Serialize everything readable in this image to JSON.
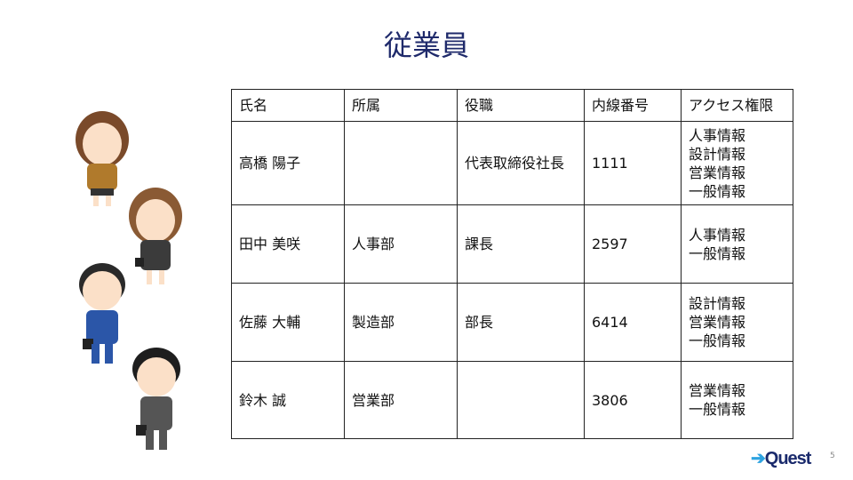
{
  "title": "従業員",
  "table": {
    "headers": [
      "氏名",
      "所属",
      "役職",
      "内線番号",
      "アクセス権限"
    ],
    "rows": [
      {
        "name": "高橋 陽子",
        "dept": "",
        "role": "代表取締役社長",
        "ext": "1111",
        "access": [
          "人事情報",
          "設計情報",
          "営業情報",
          "一般情報"
        ]
      },
      {
        "name": "田中 美咲",
        "dept": "人事部",
        "role": "課長",
        "ext": "2597",
        "access": [
          "人事情報",
          "一般情報"
        ]
      },
      {
        "name": "佐藤 大輔",
        "dept": "製造部",
        "role": "部長",
        "ext": "6414",
        "access": [
          "設計情報",
          "営業情報",
          "一般情報"
        ]
      },
      {
        "name": "鈴木 誠",
        "dept": "営業部",
        "role": "",
        "ext": "3806",
        "access": [
          "営業情報",
          "一般情報"
        ]
      }
    ]
  },
  "logo": "Quest",
  "page_number": "5",
  "colors": {
    "title": "#1f2a6b",
    "logo": "#1a2a6c",
    "logo_arrow": "#2ea3e0"
  }
}
